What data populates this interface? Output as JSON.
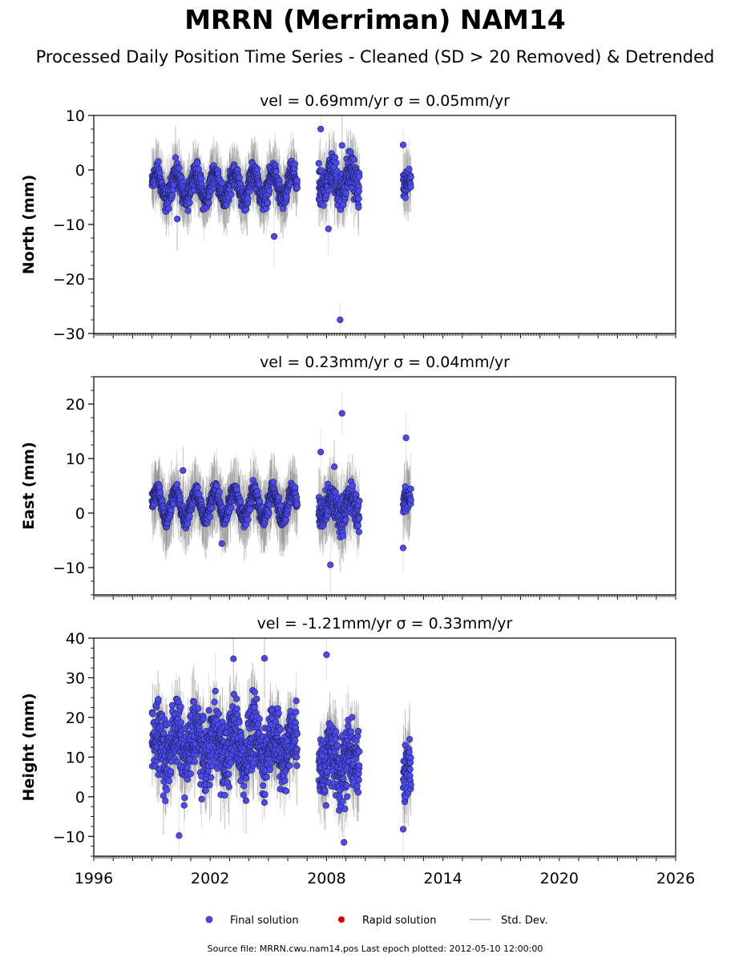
{
  "title": "MRRN (Merriman) NAM14",
  "subtitle": "Processed Daily Position Time Series - Cleaned (SD > 20 Removed) & Detrended",
  "legend": {
    "final": "Final solution",
    "rapid": "Rapid solution",
    "std": "Std. Dev."
  },
  "footer": "Source file: MRRN.cwu.nam14.pos  Last epoch plotted: 2012-05-10 12:00:00",
  "colors": {
    "final": "#4a4af0",
    "rapid": "#e00000",
    "std": "#c8c8c8"
  },
  "chart_data": [
    {
      "type": "scatter",
      "title": "vel = 0.69mm/yr   σ = 0.05mm/yr",
      "ylabel": "North (mm)",
      "xlim": [
        1996,
        2026
      ],
      "ylim": [
        -30,
        10
      ],
      "yticks": [
        -30,
        -20,
        -10,
        0,
        10
      ],
      "ytick_labels": [
        "−30",
        "−20",
        "−10",
        "0",
        "10"
      ],
      "segments": [
        {
          "start": 1999.0,
          "end": 2006.5,
          "mean": -3,
          "amp": 2.5,
          "spread": 1.5
        },
        {
          "start": 2007.6,
          "end": 2009.7,
          "mean": -2,
          "amp": 2.0,
          "spread": 2.5
        },
        {
          "start": 2011.95,
          "end": 2012.36,
          "mean": -3,
          "amp": 1.0,
          "spread": 1.5
        }
      ],
      "std_dev": 3.5,
      "outliers": [
        [
          2007.7,
          7.5
        ],
        [
          2008.8,
          4.5
        ],
        [
          2011.95,
          4.6
        ],
        [
          2008.7,
          -27.5
        ],
        [
          2005.3,
          -12.2
        ],
        [
          2008.1,
          -10.8
        ],
        [
          2000.3,
          -9.0
        ]
      ]
    },
    {
      "type": "scatter",
      "title": "vel = 0.23mm/yr   σ = 0.04mm/yr",
      "ylabel": "East (mm)",
      "xlim": [
        1996,
        2026
      ],
      "ylim": [
        -15,
        25
      ],
      "yticks": [
        -10,
        0,
        10,
        20
      ],
      "ytick_labels": [
        "−10",
        "0",
        "10",
        "20"
      ],
      "segments": [
        {
          "start": 1999.0,
          "end": 2006.5,
          "mean": 1.5,
          "amp": 2.5,
          "spread": 1.2
        },
        {
          "start": 2007.6,
          "end": 2009.7,
          "mean": 1.0,
          "amp": 1.5,
          "spread": 2.2
        },
        {
          "start": 2011.95,
          "end": 2012.36,
          "mean": 2.0,
          "amp": 1.0,
          "spread": 1.5
        }
      ],
      "std_dev": 4.0,
      "outliers": [
        [
          2008.8,
          18.3
        ],
        [
          2012.1,
          13.8
        ],
        [
          2007.7,
          11.2
        ],
        [
          2008.4,
          8.5
        ],
        [
          2000.6,
          7.8
        ],
        [
          2002.6,
          -5.6
        ],
        [
          2008.2,
          -9.5
        ],
        [
          2011.95,
          -6.4
        ]
      ]
    },
    {
      "type": "scatter",
      "title": "vel = -1.21mm/yr   σ = 0.33mm/yr",
      "ylabel": "Height (mm)",
      "xlim": [
        1996,
        2026
      ],
      "ylim": [
        -15,
        40
      ],
      "yticks": [
        -10,
        0,
        10,
        20,
        30,
        40
      ],
      "ytick_labels": [
        "−10",
        "0",
        "10",
        "20",
        "30",
        "40"
      ],
      "xticks": [
        1996,
        2002,
        2008,
        2014,
        2020,
        2026
      ],
      "xtick_labels": [
        "1996",
        "2002",
        "2008",
        "2014",
        "2020",
        "2026"
      ],
      "segments": [
        {
          "start": 1999.0,
          "end": 2006.5,
          "mean": 13,
          "amp": 4.0,
          "spread": 6.0
        },
        {
          "start": 2007.6,
          "end": 2009.7,
          "mean": 9,
          "amp": 3.0,
          "spread": 6.5
        },
        {
          "start": 2011.95,
          "end": 2012.36,
          "mean": 5,
          "amp": 2.0,
          "spread": 5.0
        }
      ],
      "std_dev": 6.0,
      "outliers": [
        [
          2003.2,
          34.8
        ],
        [
          2008.0,
          35.8
        ],
        [
          2004.8,
          34.9
        ],
        [
          2008.9,
          -11.5
        ],
        [
          2000.4,
          -9.8
        ],
        [
          2011.95,
          -8.2
        ]
      ]
    }
  ]
}
